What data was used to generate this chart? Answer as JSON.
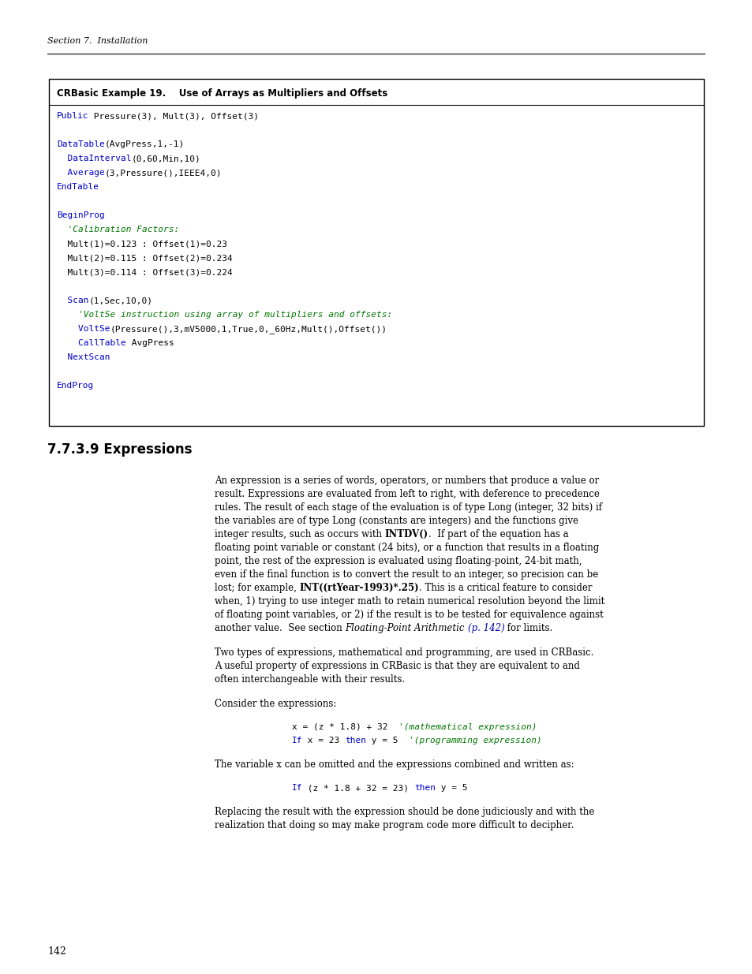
{
  "page_width": 9.54,
  "page_height": 12.35,
  "dpi": 100,
  "bg_color": "#ffffff",
  "header_text": "Section 7.  Installation",
  "page_number": "142",
  "box_title": "CRBasic Example 19.    Use of Arrays as Multipliers and Offsets",
  "section_title": "7.7.3.9 Expressions",
  "code_blue": "#0000cc",
  "code_green": "#007700",
  "code_black": "#000000",
  "body_color": "#000000"
}
